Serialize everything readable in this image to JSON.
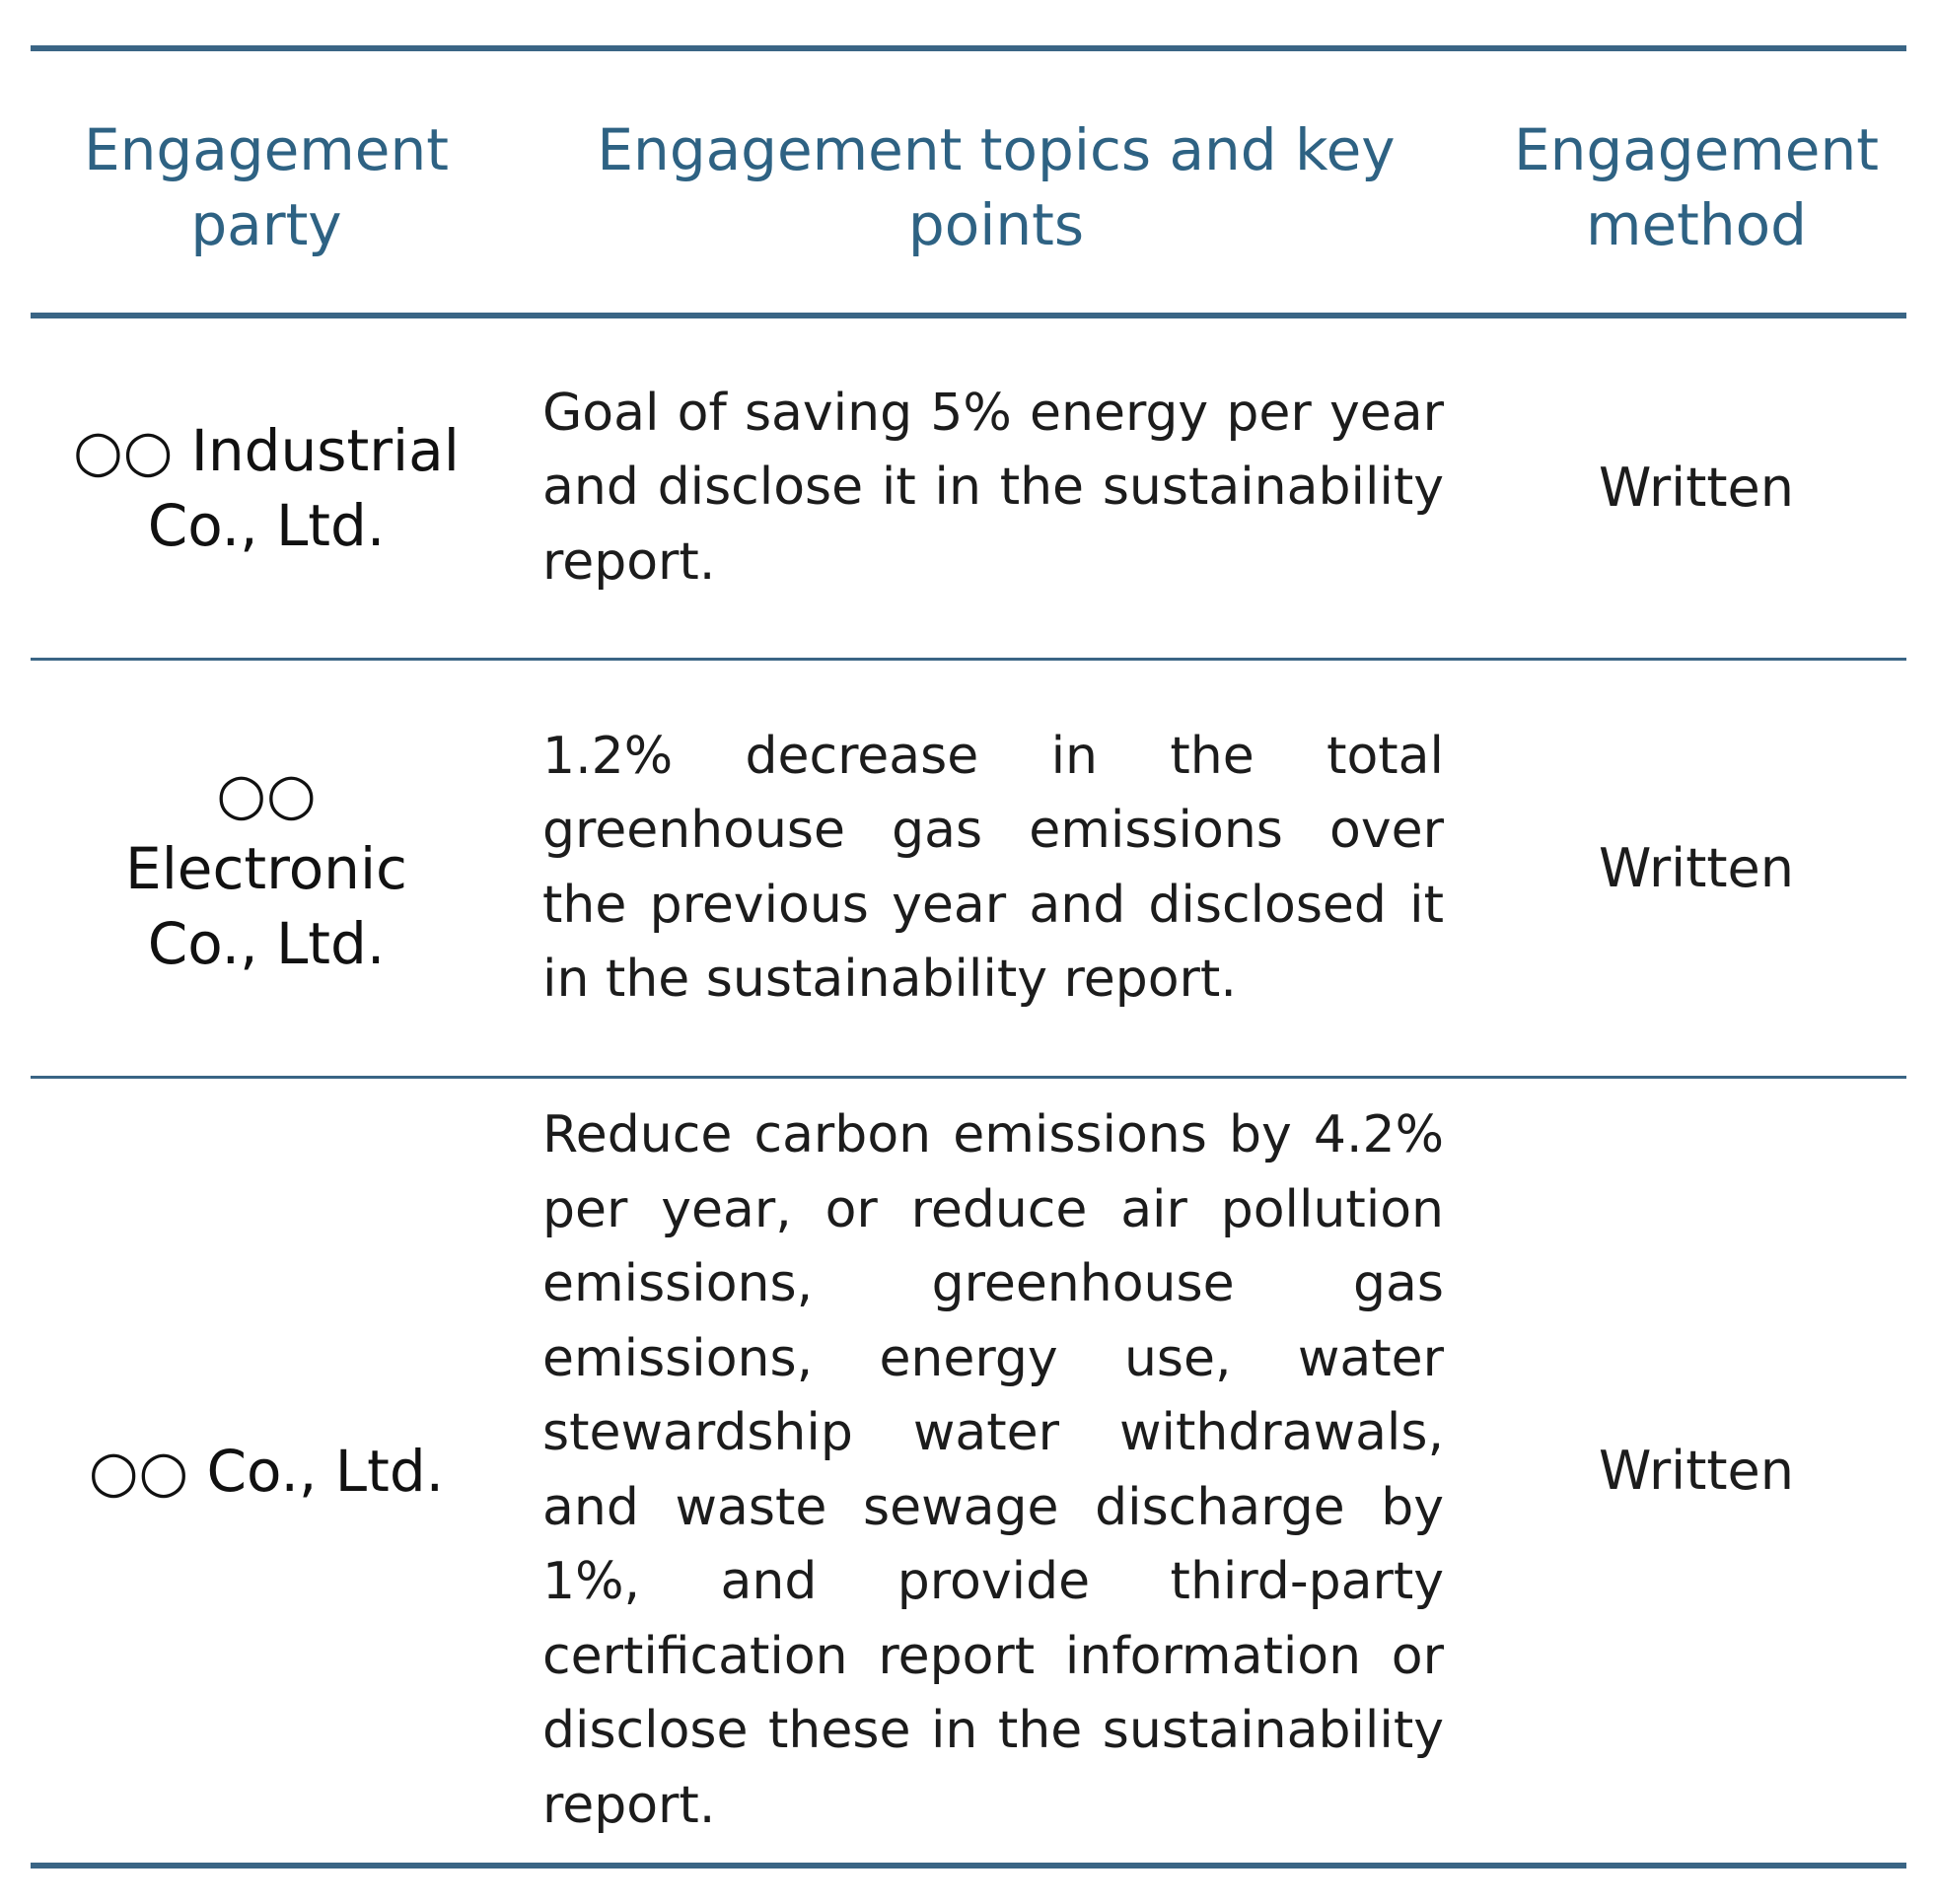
{
  "table": {
    "headers": {
      "party": "Engagement party",
      "topics": "Engagement topics and key points",
      "method": "Engagement method"
    },
    "rows": [
      {
        "party": "○○ Industrial Co., Ltd.",
        "topics": "Goal of saving 5% energy per year and disclose it in the sustainability report.",
        "method": "Written"
      },
      {
        "party": "○○ Electronic Co., Ltd.",
        "topics": "1.2% decrease in the total greenhouse gas emissions over the previous year and disclosed it in the sustainability report.",
        "method": "Written"
      },
      {
        "party": "○○ Co., Ltd.",
        "topics": "Reduce carbon emissions by 4.2% per year, or reduce air pollution emissions, greenhouse gas emissions, energy use, water stewardship water withdrawals, and waste sewage discharge by 1%, and provide third-party certification report information or disclose these in the sustainability report.",
        "method": "Written"
      }
    ]
  },
  "colors": {
    "rule": "#3a6585",
    "header_text": "#2e6283",
    "body_text": "#1c1c1c"
  }
}
